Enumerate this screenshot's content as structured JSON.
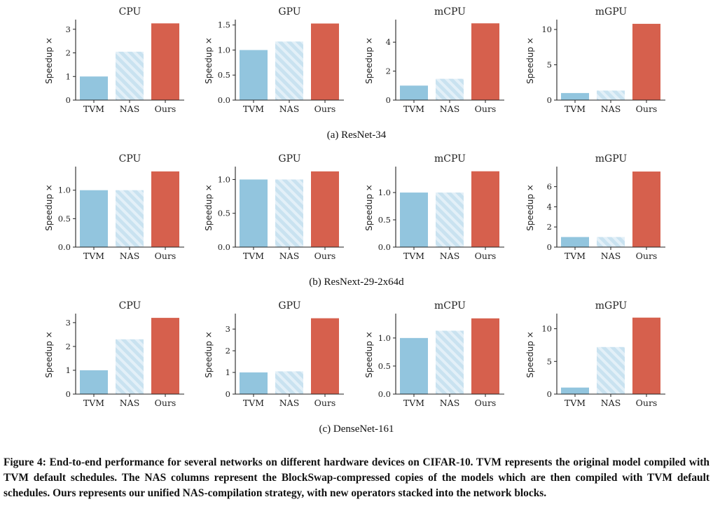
{
  "figure": {
    "caption_label": "Figure 4:",
    "caption_text": "End-to-end performance for several networks on different hardware devices on CIFAR-10. TVM represents the original model compiled with TVM default schedules. The NAS columns represent the BlockSwap-compressed copies of the models which are then compiled with TVM default schedules. Ours represents our unified NAS-compilation strategy, with new operators stacked into the network blocks.",
    "subcaptions": [
      "(a) ResNet-34",
      "(b) ResNext-29-2x64d",
      "(c) DenseNet-161"
    ]
  },
  "colors": {
    "TVM": "#92c5de",
    "NAS": "#c9e2f0",
    "NAS_stripe": "#e3f0f8",
    "Ours": "#d6604d"
  },
  "chart_data": [
    {
      "type": "bar",
      "group": "(a) ResNet-34",
      "title": "CPU",
      "ylabel": "Speedup ×",
      "categories": [
        "TVM",
        "NAS",
        "Ours"
      ],
      "values": [
        1.0,
        2.05,
        3.25
      ],
      "ylim": [
        0,
        3.35
      ],
      "yticks": [
        0,
        1,
        2,
        3
      ],
      "ytick_labels": [
        "0",
        "1",
        "2",
        "3"
      ]
    },
    {
      "type": "bar",
      "group": "(a) ResNet-34",
      "title": "GPU",
      "ylabel": "Speedup ×",
      "categories": [
        "TVM",
        "NAS",
        "Ours"
      ],
      "values": [
        1.0,
        1.17,
        1.53
      ],
      "ylim": [
        0,
        1.58
      ],
      "yticks": [
        0,
        0.5,
        1.0,
        1.5
      ],
      "ytick_labels": [
        "0.0",
        "0.5",
        "1.0",
        "1.5"
      ]
    },
    {
      "type": "bar",
      "group": "(a) ResNet-34",
      "title": "mCPU",
      "ylabel": "Speedup ×",
      "categories": [
        "TVM",
        "NAS",
        "Ours"
      ],
      "values": [
        1.0,
        1.47,
        5.3
      ],
      "ylim": [
        0,
        5.46
      ],
      "yticks": [
        0,
        2,
        4
      ],
      "ytick_labels": [
        "0",
        "2",
        "4"
      ]
    },
    {
      "type": "bar",
      "group": "(a) ResNet-34",
      "title": "mGPU",
      "ylabel": "Speedup ×",
      "categories": [
        "TVM",
        "NAS",
        "Ours"
      ],
      "values": [
        1.0,
        1.35,
        10.8
      ],
      "ylim": [
        0,
        11.2
      ],
      "yticks": [
        0,
        5,
        10
      ],
      "ytick_labels": [
        "0",
        "5",
        "10"
      ]
    },
    {
      "type": "bar",
      "group": "(b) ResNext-29-2x64d",
      "title": "CPU",
      "ylabel": "Speedup ×",
      "categories": [
        "TVM",
        "NAS",
        "Ours"
      ],
      "values": [
        1.0,
        1.0,
        1.33
      ],
      "ylim": [
        0,
        1.39
      ],
      "yticks": [
        0,
        0.5,
        1.0
      ],
      "ytick_labels": [
        "0.0",
        "0.5",
        "1.0"
      ]
    },
    {
      "type": "bar",
      "group": "(b) ResNext-29-2x64d",
      "title": "GPU",
      "ylabel": "Speedup ×",
      "categories": [
        "TVM",
        "NAS",
        "Ours"
      ],
      "values": [
        1.0,
        1.0,
        1.12
      ],
      "ylim": [
        0,
        1.17
      ],
      "yticks": [
        0,
        0.5,
        1.0
      ],
      "ytick_labels": [
        "0.0",
        "0.5",
        "1.0"
      ]
    },
    {
      "type": "bar",
      "group": "(b) ResNext-29-2x64d",
      "title": "mCPU",
      "ylabel": "Speedup ×",
      "categories": [
        "TVM",
        "NAS",
        "Ours"
      ],
      "values": [
        1.0,
        1.0,
        1.39
      ],
      "ylim": [
        0,
        1.45
      ],
      "yticks": [
        0,
        0.5,
        1.0
      ],
      "ytick_labels": [
        "0.0",
        "0.5",
        "1.0"
      ]
    },
    {
      "type": "bar",
      "group": "(b) ResNext-29-2x64d",
      "title": "mGPU",
      "ylabel": "Speedup ×",
      "categories": [
        "TVM",
        "NAS",
        "Ours"
      ],
      "values": [
        1.0,
        1.0,
        7.5
      ],
      "ylim": [
        0,
        7.85
      ],
      "yticks": [
        0,
        2,
        4,
        6
      ],
      "ytick_labels": [
        "0",
        "2",
        "4",
        "6"
      ]
    },
    {
      "type": "bar",
      "group": "(c) DenseNet-161",
      "title": "CPU",
      "ylabel": "Speedup ×",
      "categories": [
        "TVM",
        "NAS",
        "Ours"
      ],
      "values": [
        1.0,
        2.3,
        3.2
      ],
      "ylim": [
        0,
        3.32
      ],
      "yticks": [
        0,
        1,
        2,
        3
      ],
      "ytick_labels": [
        "0",
        "1",
        "2",
        "3"
      ]
    },
    {
      "type": "bar",
      "group": "(c) DenseNet-161",
      "title": "GPU",
      "ylabel": "Speedup ×",
      "categories": [
        "TVM",
        "NAS",
        "Ours"
      ],
      "values": [
        1.0,
        1.05,
        3.5
      ],
      "ylim": [
        0,
        3.65
      ],
      "yticks": [
        0,
        1,
        2,
        3
      ],
      "ytick_labels": [
        "0",
        "1",
        "2",
        "3"
      ]
    },
    {
      "type": "bar",
      "group": "(c) DenseNet-161",
      "title": "mCPU",
      "ylabel": "Speedup ×",
      "categories": [
        "TVM",
        "NAS",
        "Ours"
      ],
      "values": [
        1.0,
        1.13,
        1.35
      ],
      "ylim": [
        0,
        1.41
      ],
      "yticks": [
        0,
        0.5,
        1.0
      ],
      "ytick_labels": [
        "0.0",
        "0.5",
        "1.0"
      ]
    },
    {
      "type": "bar",
      "group": "(c) DenseNet-161",
      "title": "mGPU",
      "ylabel": "Speedup ×",
      "categories": [
        "TVM",
        "NAS",
        "Ours"
      ],
      "values": [
        1.0,
        7.2,
        11.7
      ],
      "ylim": [
        0,
        12.1
      ],
      "yticks": [
        0,
        5,
        10
      ],
      "ytick_labels": [
        "0",
        "5",
        "10"
      ]
    }
  ]
}
